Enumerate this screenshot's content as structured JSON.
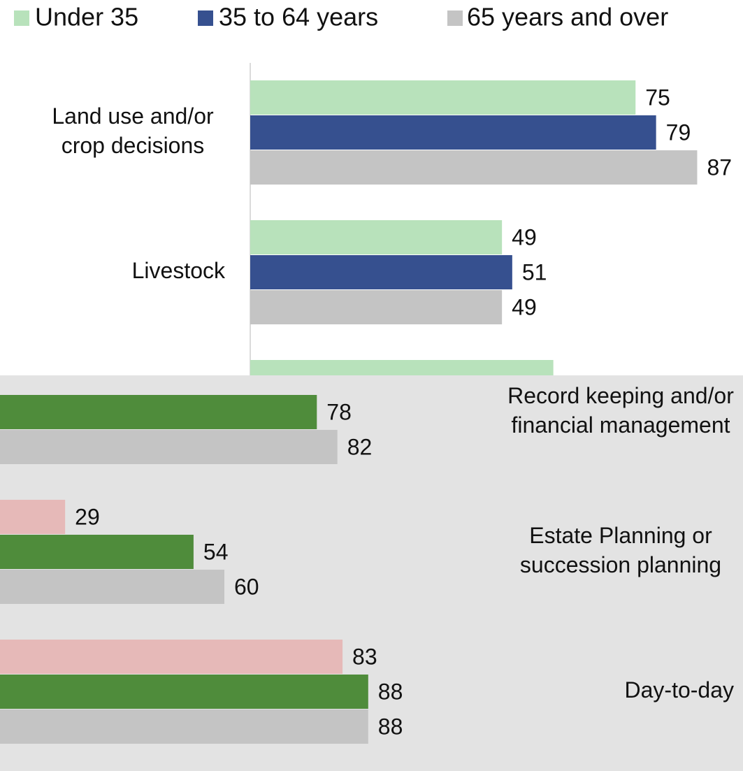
{
  "chart_data": {
    "type": "hbar",
    "categories": [
      "Land use and/or\ncrop decisions",
      "Livestock",
      "Record keeping and/or\nfinancial management",
      "Estate Planning or\nsuccession planning",
      "Day-to-day"
    ],
    "series": [
      {
        "name": "Under 35",
        "color": "#b8e2bb",
        "color_lower": "#e6b9b8",
        "values": [
          75,
          49,
          59,
          29,
          83
        ]
      },
      {
        "name": "35 to 64 years",
        "color": "#36508f",
        "color_lower": "#4f8c3b",
        "values": [
          79,
          51,
          78,
          54,
          88
        ]
      },
      {
        "name": "65 years and over",
        "color": "#c4c4c4",
        "color_lower": "#c4c4c4",
        "values": [
          87,
          49,
          82,
          60,
          88
        ]
      }
    ],
    "xlim": [
      0,
      100
    ]
  }
}
